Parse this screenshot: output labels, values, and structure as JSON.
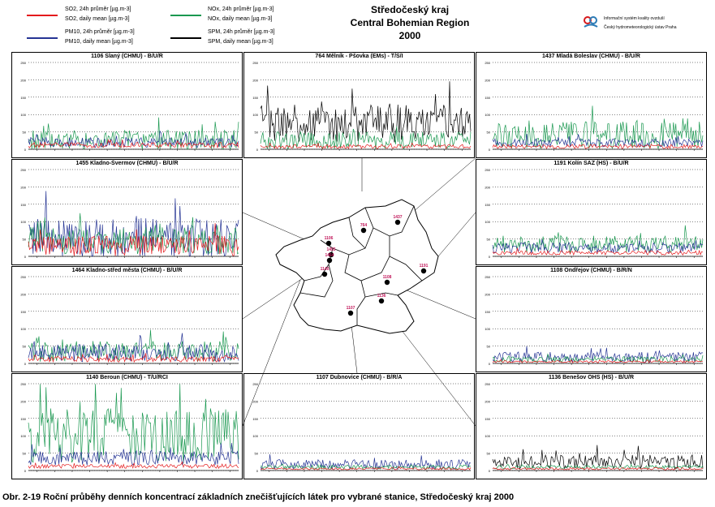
{
  "legend": {
    "items": [
      {
        "line1": "SO2, 24h průměr [µg.m-3]",
        "line2": "SO2, daily mean [µg.m-3]",
        "color": "#e41a1c"
      },
      {
        "line1": "NOx, 24h průměr [µg.m-3]",
        "line2": "NOx, daily mean [µg.m-3]",
        "color": "#1a9850"
      },
      {
        "line1": "PM10, 24h průměr [µg.m-3]",
        "line2": "PM10, daily mean [µg.m-3]",
        "color": "#253494"
      },
      {
        "line1": "SPM, 24h průměr [µg.m-3]",
        "line2": "SPM, daily mean [µg.m-3]",
        "color": "#000000"
      }
    ]
  },
  "header": {
    "title_cz": "Středočeský kraj",
    "title_en": "Central Bohemian Region",
    "year": "2000",
    "logo_line1": "Informační systém kvality ovzduší",
    "logo_line2": "Český hydrometeorologický ústav Praha"
  },
  "caption": "Obr. 2-19  Roční průběhy denních koncentrací základních znečišťujících látek pro vybrané stanice, Středočeský kraj 2000",
  "chart_data": [
    {
      "type": "line",
      "title": "1106 Slaný (CHMU)  -  B/U/R",
      "ylim": [
        0,
        250
      ],
      "yticks": [
        0,
        50,
        100,
        150,
        200,
        250
      ],
      "series": [
        {
          "name": "NOx",
          "level": 25,
          "var": 30
        },
        {
          "name": "PM10",
          "level": 20,
          "var": 15
        },
        {
          "name": "SO2",
          "level": 12,
          "var": 8
        }
      ]
    },
    {
      "type": "line",
      "title": "764 Mělník - Pšovka (EMs)  -  T/S/I",
      "ylim": [
        0,
        250
      ],
      "yticks": [
        0,
        50,
        100,
        150,
        200,
        250
      ],
      "series": [
        {
          "name": "SPM",
          "level": 75,
          "var": 55
        },
        {
          "name": "NOx",
          "level": 25,
          "var": 25
        },
        {
          "name": "SO2",
          "level": 8,
          "var": 6
        }
      ]
    },
    {
      "type": "line",
      "title": "1437 Mladá Boleslav (CHMU)  -  B/U/R",
      "ylim": [
        0,
        250
      ],
      "yticks": [
        0,
        50,
        100,
        150,
        200,
        250
      ],
      "series": [
        {
          "name": "NOx",
          "level": 40,
          "var": 40
        },
        {
          "name": "PM10",
          "level": 18,
          "var": 12
        },
        {
          "name": "SO2",
          "level": 8,
          "var": 6
        }
      ]
    },
    {
      "type": "line",
      "title": "1455 Kladno-Švermov (CHMU)  -  B/U/R",
      "ylim": [
        0,
        250
      ],
      "yticks": [
        0,
        50,
        100,
        150,
        200,
        250
      ],
      "series": [
        {
          "name": "PM10",
          "level": 50,
          "var": 60
        },
        {
          "name": "NOx",
          "level": 45,
          "var": 40
        },
        {
          "name": "SO2",
          "level": 30,
          "var": 30
        }
      ]
    },
    {
      "type": "line",
      "title": "1191 Kolín SAZ (HS)  -  B/U/R",
      "ylim": [
        0,
        250
      ],
      "yticks": [
        0,
        50,
        100,
        150,
        200,
        250
      ],
      "series": [
        {
          "name": "NOx",
          "level": 35,
          "var": 25
        },
        {
          "name": "PM10",
          "level": 25,
          "var": 15
        },
        {
          "name": "SO2",
          "level": 10,
          "var": 6
        }
      ]
    },
    {
      "type": "line",
      "title": "1464 Kladno-střed města (CHMU)  -  B/U/R",
      "ylim": [
        0,
        250
      ],
      "yticks": [
        0,
        50,
        100,
        150,
        200,
        250
      ],
      "series": [
        {
          "name": "NOx",
          "level": 35,
          "var": 30
        },
        {
          "name": "PM10",
          "level": 30,
          "var": 25
        },
        {
          "name": "SO2",
          "level": 12,
          "var": 8
        }
      ]
    },
    {
      "type": "line",
      "title": "1108 Ondřejov (CHMU)  -  B/R/N",
      "ylim": [
        0,
        250
      ],
      "yticks": [
        0,
        50,
        100,
        150,
        200,
        250
      ],
      "series": [
        {
          "name": "PM10",
          "level": 18,
          "var": 15
        },
        {
          "name": "NOx",
          "level": 12,
          "var": 8
        },
        {
          "name": "SO2",
          "level": 5,
          "var": 3
        }
      ]
    },
    {
      "type": "line",
      "title": "1140 Beroun (CHMU)  -  T/U/RCI",
      "ylim": [
        0,
        250
      ],
      "yticks": [
        0,
        50,
        100,
        150,
        200,
        250
      ],
      "series": [
        {
          "name": "NOx",
          "level": 100,
          "var": 80
        },
        {
          "name": "PM10",
          "level": 35,
          "var": 20
        },
        {
          "name": "SO2",
          "level": 12,
          "var": 6
        }
      ]
    },
    {
      "type": "line",
      "title": "1107 Dubnovice (CHMU)  -  B/R/A",
      "ylim": [
        0,
        250
      ],
      "yticks": [
        0,
        50,
        100,
        150,
        200,
        250
      ],
      "series": [
        {
          "name": "PM10",
          "level": 18,
          "var": 14
        },
        {
          "name": "NOx",
          "level": 10,
          "var": 6
        },
        {
          "name": "SO2",
          "level": 5,
          "var": 3
        }
      ]
    },
    {
      "type": "line",
      "title": "1136 Benešov OHS (HS)  -  B/U/R",
      "ylim": [
        0,
        250
      ],
      "yticks": [
        0,
        50,
        100,
        150,
        200,
        250
      ],
      "series": [
        {
          "name": "SPM",
          "level": 25,
          "var": 20
        },
        {
          "name": "NOx",
          "level": 10,
          "var": 5
        },
        {
          "name": "SO2",
          "level": 5,
          "var": 3
        }
      ]
    }
  ],
  "map": {
    "stations": [
      {
        "id": "764"
      },
      {
        "id": "1437"
      },
      {
        "id": "1106"
      },
      {
        "id": "1455"
      },
      {
        "id": "1464"
      },
      {
        "id": "1140"
      },
      {
        "id": "1191"
      },
      {
        "id": "1108"
      },
      {
        "id": "1136"
      },
      {
        "id": "1107"
      }
    ]
  }
}
